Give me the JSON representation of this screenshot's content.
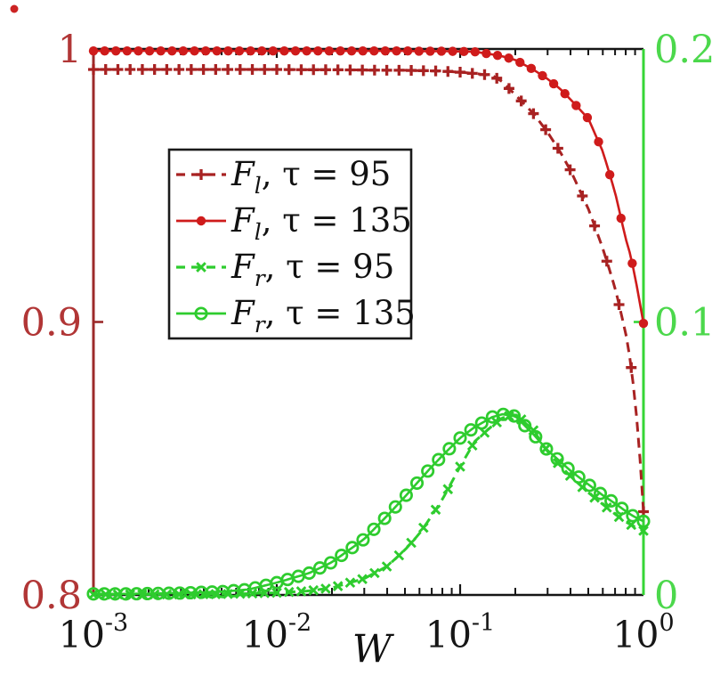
{
  "figure": {
    "background": "#ffffff",
    "stray_dot_color": "#cc2323"
  },
  "chart_data": {
    "type": "line",
    "x_scale": "log",
    "xlabel": "W",
    "x_range": [
      0.001,
      1
    ],
    "grid": "off",
    "legend_position": "upper-left-inside",
    "x_tick_labels": [
      {
        "base": "10",
        "exp": "-3"
      },
      {
        "base": "10",
        "exp": "-2"
      },
      {
        "base": "10",
        "exp": "-1"
      },
      {
        "base": "10",
        "exp": "0"
      }
    ],
    "x_tick_values": [
      0.001,
      0.01,
      0.1,
      1
    ],
    "top_axis_color": "#151515",
    "bottom_axis_color": "#151515",
    "left_axis": {
      "range": [
        0.8,
        1.0
      ],
      "axis_color": "#9c2a2a",
      "label_color": "#b13636",
      "tick_labels": [
        {
          "value": 1.0,
          "label": "1"
        },
        {
          "value": 0.9,
          "label": "0.9"
        },
        {
          "value": 0.8,
          "label": "0.8"
        }
      ],
      "inner_tick_values": [
        0.9
      ]
    },
    "right_axis": {
      "range": [
        0,
        0.2
      ],
      "axis_color": "#36d636",
      "label_color": "#4cd84c",
      "tick_labels": [
        {
          "value": 0.2,
          "label": "0.2"
        },
        {
          "value": 0.1,
          "label": "0.1"
        },
        {
          "value": 0.0,
          "label": "0"
        }
      ],
      "inner_tick_values": [
        0.1
      ]
    },
    "series": [
      {
        "name": "F_l, tau = 95",
        "legend": {
          "sym": "F",
          "sub": "l",
          "rest": ", τ = 95"
        },
        "axis": "left",
        "color": "#a82222",
        "style": "dashed",
        "marker": "plus",
        "marker_count": 46,
        "x": [
          0.001,
          0.0015,
          0.002,
          0.003,
          0.005,
          0.007,
          0.01,
          0.015,
          0.02,
          0.03,
          0.04,
          0.05,
          0.06,
          0.07,
          0.08,
          0.1,
          0.12,
          0.15,
          0.17,
          0.2,
          0.25,
          0.3,
          0.35,
          0.4,
          0.5,
          0.6,
          0.7,
          0.8,
          0.85,
          0.9,
          0.95,
          1.0
        ],
        "y": [
          0.9925,
          0.9925,
          0.9925,
          0.9925,
          0.9925,
          0.9925,
          0.9925,
          0.9924,
          0.9924,
          0.9923,
          0.9922,
          0.9922,
          0.9921,
          0.992,
          0.9919,
          0.9915,
          0.991,
          0.9903,
          0.988,
          0.9832,
          0.9765,
          0.9695,
          0.9625,
          0.9555,
          0.9415,
          0.927,
          0.9125,
          0.896,
          0.8855,
          0.8715,
          0.8535,
          0.8305
        ]
      },
      {
        "name": "F_l, tau = 135",
        "legend": {
          "sym": "F",
          "sub": "l",
          "rest": ", τ = 135"
        },
        "axis": "left",
        "color": "#cf1b1b",
        "style": "solid",
        "marker": "dot",
        "marker_count": 50,
        "x": [
          0.001,
          0.0015,
          0.002,
          0.003,
          0.005,
          0.007,
          0.01,
          0.015,
          0.02,
          0.03,
          0.04,
          0.05,
          0.06,
          0.07,
          0.08,
          0.1,
          0.12,
          0.15,
          0.17,
          0.2,
          0.25,
          0.3,
          0.35,
          0.4,
          0.5,
          0.6,
          0.7,
          0.8,
          0.85,
          0.9,
          0.95,
          1.0
        ],
        "y": [
          0.9993,
          0.9993,
          0.9993,
          0.9993,
          0.9993,
          0.9993,
          0.9993,
          0.9993,
          0.9993,
          0.9993,
          0.9993,
          0.9993,
          0.9992,
          0.9992,
          0.9992,
          0.9991,
          0.999,
          0.998,
          0.9973,
          0.996,
          0.9925,
          0.989,
          0.9855,
          0.9815,
          0.9745,
          0.9625,
          0.9475,
          0.9305,
          0.9245,
          0.9165,
          0.908,
          0.8995
        ]
      },
      {
        "name": "F_r, tau = 95",
        "legend": {
          "sym": "F",
          "sub": "r",
          "rest": ", τ = 95"
        },
        "axis": "right",
        "color": "#2ecc2e",
        "style": "dashed",
        "marker": "x",
        "marker_count": 46,
        "x": [
          0.001,
          0.0015,
          0.002,
          0.003,
          0.005,
          0.007,
          0.01,
          0.015,
          0.02,
          0.03,
          0.04,
          0.05,
          0.06,
          0.07,
          0.08,
          0.1,
          0.12,
          0.15,
          0.17,
          0.2,
          0.25,
          0.3,
          0.35,
          0.4,
          0.5,
          0.6,
          0.7,
          0.8,
          0.85,
          0.9,
          0.95,
          1.0
        ],
        "y": [
          0.0002,
          0.0002,
          0.0002,
          0.0002,
          0.0003,
          0.0005,
          0.0008,
          0.0015,
          0.0026,
          0.006,
          0.0105,
          0.0165,
          0.0225,
          0.029,
          0.035,
          0.047,
          0.0562,
          0.062,
          0.0648,
          0.0662,
          0.0605,
          0.0525,
          0.0475,
          0.0435,
          0.0375,
          0.0332,
          0.0296,
          0.0268,
          0.0258,
          0.0249,
          0.0242,
          0.0235
        ]
      },
      {
        "name": "F_r, tau = 135",
        "legend": {
          "sym": "F",
          "sub": "r",
          "rest": ", τ = 135"
        },
        "axis": "right",
        "color": "#2ecc2e",
        "style": "solid",
        "marker": "circle",
        "marker_count": 52,
        "x": [
          0.001,
          0.0015,
          0.002,
          0.003,
          0.005,
          0.007,
          0.01,
          0.015,
          0.02,
          0.03,
          0.04,
          0.05,
          0.06,
          0.07,
          0.08,
          0.1,
          0.12,
          0.15,
          0.17,
          0.2,
          0.25,
          0.3,
          0.35,
          0.4,
          0.5,
          0.6,
          0.7,
          0.8,
          0.85,
          0.9,
          0.95,
          1.0
        ],
        "y": [
          0.0004,
          0.0004,
          0.0005,
          0.0007,
          0.0012,
          0.002,
          0.0045,
          0.008,
          0.012,
          0.0205,
          0.029,
          0.036,
          0.042,
          0.047,
          0.051,
          0.0575,
          0.0615,
          0.0652,
          0.0662,
          0.0655,
          0.059,
          0.053,
          0.049,
          0.0455,
          0.0405,
          0.0365,
          0.0335,
          0.0307,
          0.0295,
          0.0285,
          0.0277,
          0.027
        ]
      }
    ]
  }
}
